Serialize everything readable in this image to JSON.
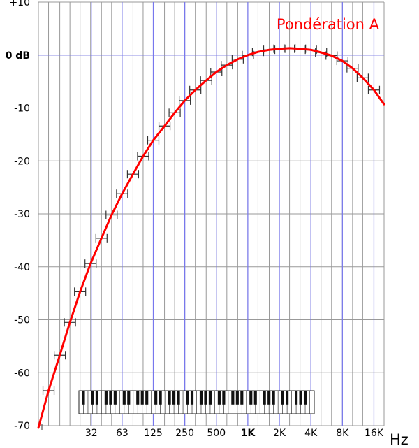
{
  "chart_data": {
    "type": "line",
    "title": "Pondération A",
    "xlabel": "Hz",
    "ylabel": "",
    "x_scale": "log",
    "xlim": [
      10,
      20000
    ],
    "ylim": [
      -70,
      10
    ],
    "x_ticks": [
      {
        "value": 32,
        "label": "32",
        "bold": false
      },
      {
        "value": 63,
        "label": "63",
        "bold": false
      },
      {
        "value": 125,
        "label": "125",
        "bold": false
      },
      {
        "value": 250,
        "label": "250",
        "bold": false
      },
      {
        "value": 500,
        "label": "500",
        "bold": false
      },
      {
        "value": 1000,
        "label": "1K",
        "bold": true
      },
      {
        "value": 2000,
        "label": "2K",
        "bold": false
      },
      {
        "value": 4000,
        "label": "4K",
        "bold": false
      },
      {
        "value": 8000,
        "label": "8K",
        "bold": false
      },
      {
        "value": 16000,
        "label": "16K",
        "bold": false
      }
    ],
    "y_ticks": [
      {
        "value": 10,
        "label": "+10",
        "bold": false
      },
      {
        "value": 0,
        "label": "0 dB",
        "bold": true
      },
      {
        "value": -10,
        "label": "-10",
        "bold": false
      },
      {
        "value": -20,
        "label": "-20",
        "bold": false
      },
      {
        "value": -30,
        "label": "-30",
        "bold": false
      },
      {
        "value": -40,
        "label": "-40",
        "bold": false
      },
      {
        "value": -50,
        "label": "-50",
        "bold": false
      },
      {
        "value": -60,
        "label": "-60",
        "bold": false
      },
      {
        "value": -70,
        "label": "-70",
        "bold": false
      }
    ],
    "grid": true,
    "series": [
      {
        "color": "#ff0000",
        "x": [
          10,
          12.5,
          16,
          20,
          25,
          31.5,
          40,
          50,
          63,
          80,
          100,
          125,
          160,
          200,
          250,
          315,
          400,
          500,
          630,
          800,
          1000,
          1250,
          1600,
          2000,
          2500,
          3150,
          4000,
          5000,
          6300,
          8000,
          10000,
          12500,
          16000,
          20000
        ],
        "y": [
          -70.4,
          -63.4,
          -56.7,
          -50.5,
          -44.7,
          -39.4,
          -34.6,
          -30.2,
          -26.2,
          -22.5,
          -19.1,
          -16.1,
          -13.4,
          -10.9,
          -8.6,
          -6.6,
          -4.8,
          -3.2,
          -1.9,
          -0.8,
          0.0,
          0.6,
          1.0,
          1.2,
          1.3,
          1.2,
          1.0,
          0.5,
          -0.1,
          -1.1,
          -2.5,
          -4.3,
          -6.6,
          -9.3
        ]
      }
    ],
    "error_bars": {
      "x": [
        12.5,
        16,
        20,
        25,
        31.5,
        40,
        50,
        63,
        80,
        100,
        125,
        160,
        200,
        250,
        315,
        400,
        500,
        630,
        800,
        1000,
        1250,
        1600,
        2000,
        2500,
        3150,
        4000,
        5000,
        6300,
        8000,
        10000,
        12500,
        16000
      ],
      "color": "#333333"
    },
    "minor_grid_color": "#999999",
    "major_grid_color": "#7777ee",
    "piano_keyboard": {
      "white_keys": 52
    }
  }
}
